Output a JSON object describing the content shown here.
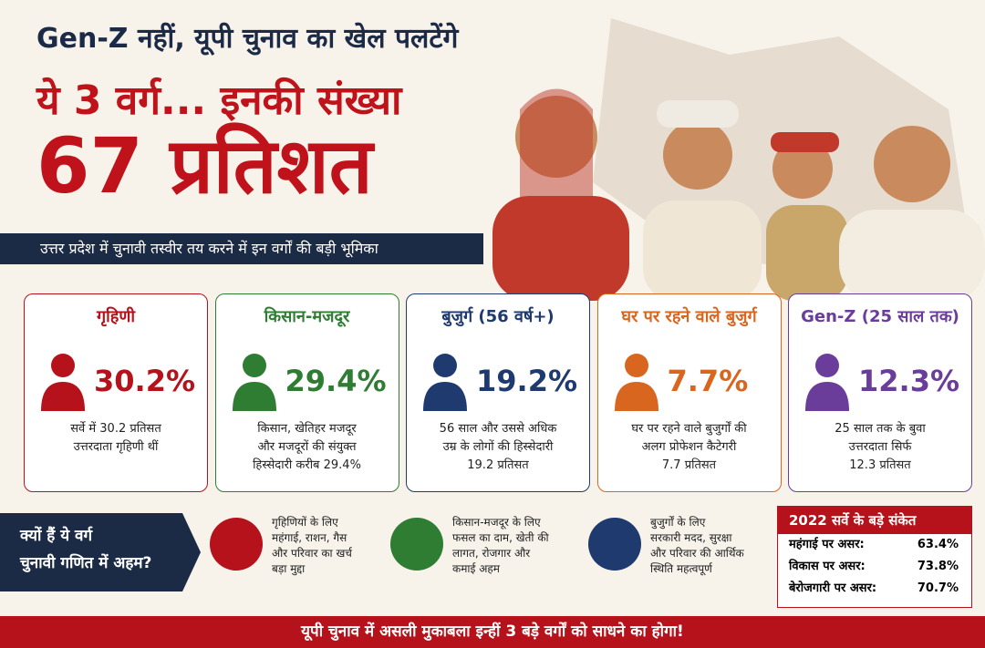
{
  "header": {
    "line1": "Gen-Z नहीं, यूपी चुनाव का खेल पलटेंगे",
    "line2": "ये 3 वर्ग... इनकी संख्या",
    "line3": "67 प्रतिशत",
    "subtitle": "उत्तर प्रदेश में चुनावी तस्वीर तय करने में इन वर्गों की बड़ी भूमिका"
  },
  "cards": [
    {
      "title": "गृहिणी",
      "value": "30.2%",
      "description": [
        "सर्वे में 30.2 प्रतिसत",
        "उत्तरदाता गृहिणी थीं"
      ]
    },
    {
      "title": "किसान-मजदूर",
      "value": "29.4%",
      "description": [
        "किसान, खेतिहर मजदूर",
        "और मजदूरों की संयुक्त",
        "हिस्सेदारी करीब 29.4%"
      ]
    },
    {
      "title": "बुजुर्ग (56 वर्ष+)",
      "value": "19.2%",
      "description": [
        "56 साल और उससे अधिक",
        "उम्र के लोगों की हिस्सेदारी",
        "19.2 प्रतिसत"
      ]
    },
    {
      "title": "घर पर रहने वाले बुजुर्ग",
      "value": "7.7%",
      "description": [
        "घर पर रहने वाले बुजुर्गों की",
        "अलग प्रोफेशन कैटेगरी",
        "7.7 प्रतिसत"
      ]
    },
    {
      "title": "Gen-Z (25 साल तक)",
      "value": "12.3%",
      "description": [
        "25 साल तक के बुवा",
        "उत्तरदाता सिर्फ",
        "12.3 प्रतिसत"
      ]
    }
  ],
  "why": {
    "label": [
      "क्यों हैं ये वर्ग",
      "चुनावी गणित में अहम?"
    ],
    "items": [
      [
        "गृहिणियों के लिए",
        "महंगाई, राशन, गैस",
        "और परिवार का खर्च",
        "बड़ा मुद्दा"
      ],
      [
        "किसान-मजदूर के लिए",
        "फसल का दाम, खेती की",
        "लागत, रोजगार और",
        "कमाई अहम"
      ],
      [
        "बुजुर्गों के लिए",
        "सरकारी मदद, सुरक्षा",
        "और परिवार की आर्थिक",
        "स्थिति महत्वपूर्ण"
      ]
    ]
  },
  "survey": {
    "title": "2022 सर्वे के बड़े संकेत",
    "rows": [
      {
        "label": "महंगाई पर असर:",
        "value": "63.4%"
      },
      {
        "label": "विकास पर असर:",
        "value": "73.8%"
      },
      {
        "label": "बेरोजगारी पर असर:",
        "value": "70.7%"
      }
    ]
  },
  "footer": "यूपी चुनाव में असली मुकाबला इन्हीं 3 बड़े वर्गों को साधने का होगा!"
}
